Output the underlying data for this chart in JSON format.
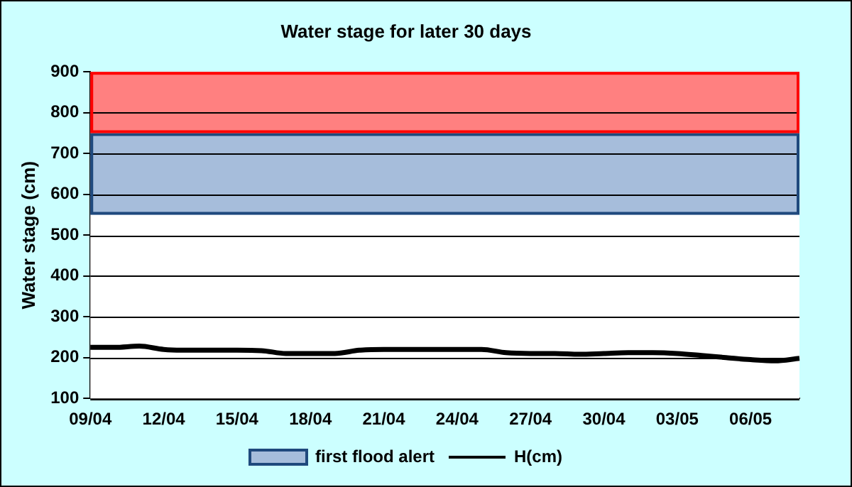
{
  "chart_data": {
    "type": "line",
    "title": "Water stage for later 30 days",
    "ylabel": "Water stage (cm)",
    "categories": [
      "09/04",
      null,
      null,
      "12/04",
      null,
      null,
      "15/04",
      null,
      null,
      "18/04",
      null,
      null,
      "21/04",
      null,
      null,
      "24/04",
      null,
      null,
      "27/04",
      null,
      null,
      "30/04",
      null,
      null,
      "03/05",
      null,
      null,
      "06/05",
      null,
      null
    ],
    "series": [
      {
        "name": "H(cm)",
        "color": "#000000",
        "values": [
          225,
          225,
          228,
          220,
          218,
          218,
          218,
          217,
          210,
          210,
          210,
          218,
          220,
          220,
          220,
          220,
          220,
          212,
          210,
          210,
          208,
          210,
          212,
          212,
          210,
          205,
          200,
          195,
          192,
          198
        ]
      }
    ],
    "ylim": [
      100,
      900
    ],
    "yticks": [
      100,
      200,
      300,
      400,
      500,
      600,
      700,
      800,
      900
    ],
    "bands": [
      {
        "axis": "y",
        "from": 550,
        "to": 750,
        "label": "first flood alert",
        "color": "#a6bddb"
      },
      {
        "axis": "y",
        "from": 750,
        "to": 900,
        "color": "#ff8080"
      }
    ],
    "grid": "y",
    "legend": "bottom",
    "marker": "none",
    "line_style": "solid"
  }
}
